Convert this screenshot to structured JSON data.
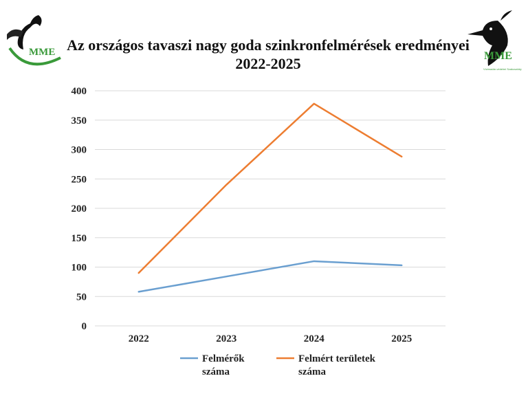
{
  "header": {
    "title_line1": "Az országos tavaszi nagy goda szinkronfelmérések eredményei",
    "title_line2": "2022-2025"
  },
  "logos": {
    "left_text": "MME",
    "right_text": "MME",
    "right_subtext": "Vízimadár-védelmi Szakosztály"
  },
  "chart_data": {
    "type": "line",
    "title": "Az országos tavaszi nagy goda szinkronfelmérések eredményei 2022-2025",
    "categories": [
      "2022",
      "2023",
      "2024",
      "2025"
    ],
    "ylim": [
      0,
      400
    ],
    "yticks": [
      0,
      50,
      100,
      150,
      200,
      250,
      300,
      350,
      400
    ],
    "grid": true,
    "legend_position": "bottom",
    "series": [
      {
        "name": "Felmérők száma",
        "values": [
          58,
          84,
          110,
          103
        ],
        "color": "#6a9fd0"
      },
      {
        "name": "Felmért területek száma",
        "values": [
          90,
          240,
          378,
          288
        ],
        "color": "#ed7d31"
      }
    ]
  }
}
